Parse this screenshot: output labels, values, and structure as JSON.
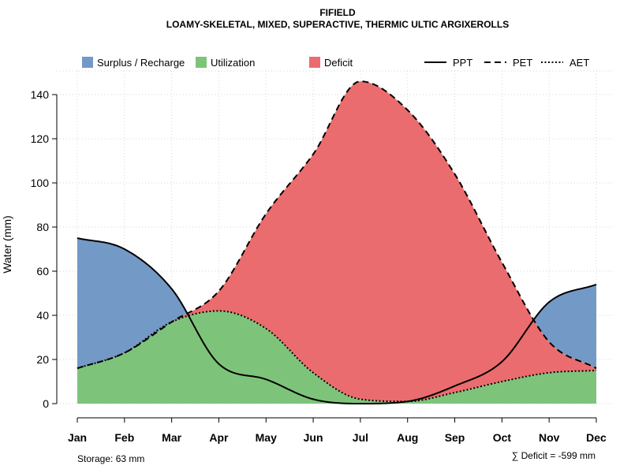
{
  "chart_data": {
    "type": "area",
    "title": "FIFIELD",
    "subtitle": "LOAMY-SKELETAL, MIXED, SUPERACTIVE, THERMIC ULTIC ARGIXEROLLS",
    "ylabel": "Water (mm)",
    "xlabel": "",
    "ylim": [
      0,
      150
    ],
    "yticks": [
      0,
      20,
      40,
      60,
      80,
      100,
      120,
      140
    ],
    "categories": [
      "Jan",
      "Feb",
      "Mar",
      "Apr",
      "May",
      "Jun",
      "Jul",
      "Aug",
      "Sep",
      "Oct",
      "Nov",
      "Dec"
    ],
    "grid": true,
    "legend_position": "top",
    "series": [
      {
        "name": "PPT",
        "line": "solid",
        "values": [
          75,
          70,
          52,
          18,
          11,
          2,
          0,
          1,
          8,
          19,
          46,
          54
        ]
      },
      {
        "name": "PET",
        "line": "dashed",
        "values": [
          16,
          23,
          37,
          51,
          86,
          113,
          146,
          133,
          104,
          64,
          28,
          16
        ]
      },
      {
        "name": "AET",
        "line": "dotted",
        "values": [
          16,
          23,
          37,
          42,
          34,
          14,
          2,
          1,
          5,
          10,
          14,
          15
        ]
      }
    ],
    "areas": [
      {
        "name": "Surplus / Recharge",
        "color": "#7399c6"
      },
      {
        "name": "Utilization",
        "color": "#7dc47a"
      },
      {
        "name": "Deficit",
        "color": "#eb6c6e"
      }
    ],
    "annotations": {
      "storage": "Storage: 63 mm",
      "deficit": "∑ Deficit = -599 mm"
    }
  }
}
